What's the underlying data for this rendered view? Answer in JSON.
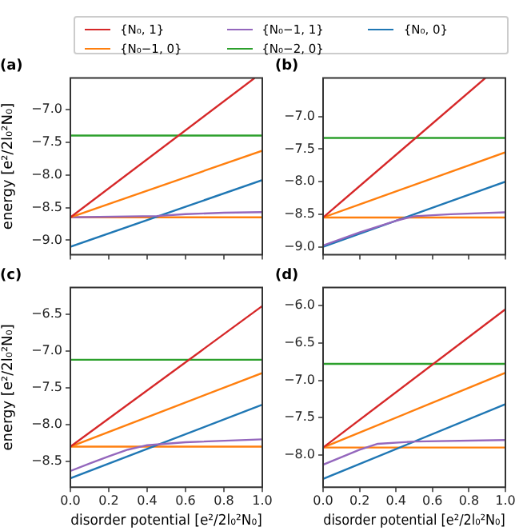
{
  "chart_data": [
    {
      "type": "line",
      "title": "(a)",
      "ylabel": "energy [e²/2l₀²N₀]",
      "xlim": [
        0,
        1
      ],
      "xticks": [
        {
          "value": 0,
          "label": null
        },
        {
          "value": 0.2,
          "label": null
        },
        {
          "value": 0.4,
          "label": null
        },
        {
          "value": 0.6,
          "label": null
        },
        {
          "value": 0.8,
          "label": null
        },
        {
          "value": 1,
          "label": null
        }
      ],
      "ylim": [
        -9.22,
        -6.52
      ],
      "yticks": [
        {
          "value": -9,
          "label": "−9.0"
        },
        {
          "value": -8.5,
          "label": "−8.5"
        },
        {
          "value": -8,
          "label": "−8.0"
        },
        {
          "value": -7.5,
          "label": "−7.5"
        },
        {
          "value": -7,
          "label": "−7.0"
        }
      ],
      "tick_labels": "y",
      "grid": false,
      "legend": "top",
      "marker": "none",
      "series": [
        {
          "name": "{N₀, 1}",
          "color": "#d62728",
          "x": [
            0,
            0.96
          ],
          "values": [
            -8.65,
            -6.52
          ]
        },
        {
          "name": "{N₀−1, 0}",
          "color": "#ff7f0e",
          "x": [
            0,
            1
          ],
          "values": [
            -8.65,
            -7.63
          ]
        },
        {
          "name": "{N₀−1, 1}",
          "color": "#9467bd",
          "x": [
            0,
            0.45,
            0.6,
            0.8,
            1
          ],
          "values": [
            -8.65,
            -8.63,
            -8.6,
            -8.58,
            -8.57
          ]
        },
        {
          "name": "{N₀−2, 0}",
          "color": "#2ca02c",
          "x": [
            0,
            1
          ],
          "values": [
            -7.4,
            -7.4
          ]
        },
        {
          "name": "{N₀, 0}",
          "color": "#1f77b4",
          "x": [
            0,
            1
          ],
          "values": [
            -9.1,
            -8.08
          ]
        },
        {
          "color": "#ff7f0e",
          "x": [
            0,
            1
          ],
          "values": [
            -8.65,
            -8.65
          ]
        }
      ]
    },
    {
      "type": "line",
      "title": "(b)",
      "xlim": [
        0,
        1
      ],
      "xticks": [
        {
          "value": 0,
          "label": null
        },
        {
          "value": 0.2,
          "label": null
        },
        {
          "value": 0.4,
          "label": null
        },
        {
          "value": 0.6,
          "label": null
        },
        {
          "value": 0.8,
          "label": null
        },
        {
          "value": 1,
          "label": null
        }
      ],
      "ylim": [
        -9.12,
        -6.41
      ],
      "yticks": [
        {
          "value": -9,
          "label": "−9.0"
        },
        {
          "value": -8.5,
          "label": "−8.5"
        },
        {
          "value": -8,
          "label": "−8.0"
        },
        {
          "value": -7.5,
          "label": "−7.5"
        },
        {
          "value": -7,
          "label": "−7.0"
        }
      ],
      "tick_labels": "y",
      "grid": false,
      "marker": "none",
      "series": [
        {
          "color": "#d62728",
          "x": [
            0,
            0.89
          ],
          "values": [
            -8.55,
            -6.41
          ]
        },
        {
          "color": "#ff7f0e",
          "x": [
            0,
            1
          ],
          "values": [
            -8.55,
            -7.55
          ]
        },
        {
          "color": "#9467bd",
          "x": [
            0,
            0.2,
            0.4,
            0.5,
            0.7,
            1
          ],
          "values": [
            -8.98,
            -8.78,
            -8.6,
            -8.53,
            -8.5,
            -8.47
          ]
        },
        {
          "color": "#2ca02c",
          "x": [
            0,
            1
          ],
          "values": [
            -7.33,
            -7.33
          ]
        },
        {
          "color": "#1f77b4",
          "x": [
            0,
            1
          ],
          "values": [
            -9.0,
            -8.0
          ]
        },
        {
          "color": "#ff7f0e",
          "x": [
            0,
            1
          ],
          "values": [
            -8.55,
            -8.55
          ]
        }
      ]
    },
    {
      "type": "line",
      "title": "(c)",
      "xlabel": "disorder potential [e²/2l₀²N₀]",
      "ylabel": "energy [e²/2l₀²N₀]",
      "xlim": [
        0,
        1
      ],
      "xticks": [
        {
          "value": 0,
          "label": "0.0"
        },
        {
          "value": 0.2,
          "label": "0.2"
        },
        {
          "value": 0.4,
          "label": "0.4"
        },
        {
          "value": 0.6,
          "label": "0.6"
        },
        {
          "value": 0.8,
          "label": "0.8"
        },
        {
          "value": 1,
          "label": "1.0"
        }
      ],
      "ylim": [
        -8.85,
        -6.14
      ],
      "yticks": [
        {
          "value": -8.5,
          "label": "−8.5"
        },
        {
          "value": -8,
          "label": "−8.0"
        },
        {
          "value": -7.5,
          "label": "−7.5"
        },
        {
          "value": -7,
          "label": "−7.0"
        },
        {
          "value": -6.5,
          "label": "−6.5"
        }
      ],
      "grid": false,
      "marker": "none",
      "series": [
        {
          "color": "#d62728",
          "x": [
            0,
            1
          ],
          "values": [
            -8.3,
            -6.39
          ]
        },
        {
          "color": "#ff7f0e",
          "x": [
            0,
            1
          ],
          "values": [
            -8.3,
            -7.3
          ]
        },
        {
          "color": "#9467bd",
          "x": [
            0,
            0.1,
            0.2,
            0.3,
            0.4,
            0.6,
            1
          ],
          "values": [
            -8.63,
            -8.53,
            -8.43,
            -8.34,
            -8.28,
            -8.24,
            -8.2
          ]
        },
        {
          "color": "#2ca02c",
          "x": [
            0,
            1
          ],
          "values": [
            -7.12,
            -7.12
          ]
        },
        {
          "color": "#1f77b4",
          "x": [
            0,
            1
          ],
          "values": [
            -8.73,
            -7.73
          ]
        },
        {
          "color": "#ff7f0e",
          "x": [
            0,
            1
          ],
          "values": [
            -8.3,
            -8.3
          ]
        }
      ]
    },
    {
      "type": "line",
      "title": "(d)",
      "xlabel": "disorder potential [e²/2l₀²N₀]",
      "xlim": [
        0,
        1
      ],
      "xticks": [
        {
          "value": 0,
          "label": "0.0"
        },
        {
          "value": 0.2,
          "label": "0.2"
        },
        {
          "value": 0.4,
          "label": "0.4"
        },
        {
          "value": 0.6,
          "label": "0.6"
        },
        {
          "value": 0.8,
          "label": "0.8"
        },
        {
          "value": 1,
          "label": "1.0"
        }
      ],
      "ylim": [
        -8.43,
        -5.76
      ],
      "yticks": [
        {
          "value": -8,
          "label": "−8.0"
        },
        {
          "value": -7.5,
          "label": "−7.5"
        },
        {
          "value": -7,
          "label": "−7.0"
        },
        {
          "value": -6.5,
          "label": "−6.5"
        },
        {
          "value": -6,
          "label": "−6.0"
        }
      ],
      "grid": false,
      "marker": "none",
      "series": [
        {
          "color": "#d62728",
          "x": [
            0,
            1
          ],
          "values": [
            -7.9,
            -6.05
          ]
        },
        {
          "color": "#ff7f0e",
          "x": [
            0,
            1
          ],
          "values": [
            -7.9,
            -6.9
          ]
        },
        {
          "color": "#9467bd",
          "x": [
            0,
            0.2,
            0.3,
            0.5,
            1
          ],
          "values": [
            -8.13,
            -7.93,
            -7.85,
            -7.82,
            -7.8
          ]
        },
        {
          "color": "#2ca02c",
          "x": [
            0,
            1
          ],
          "values": [
            -6.78,
            -6.78
          ]
        },
        {
          "color": "#1f77b4",
          "x": [
            0,
            1
          ],
          "values": [
            -8.32,
            -7.32
          ]
        },
        {
          "color": "#ff7f0e",
          "x": [
            0,
            1
          ],
          "values": [
            -7.9,
            -7.9
          ]
        }
      ]
    }
  ]
}
